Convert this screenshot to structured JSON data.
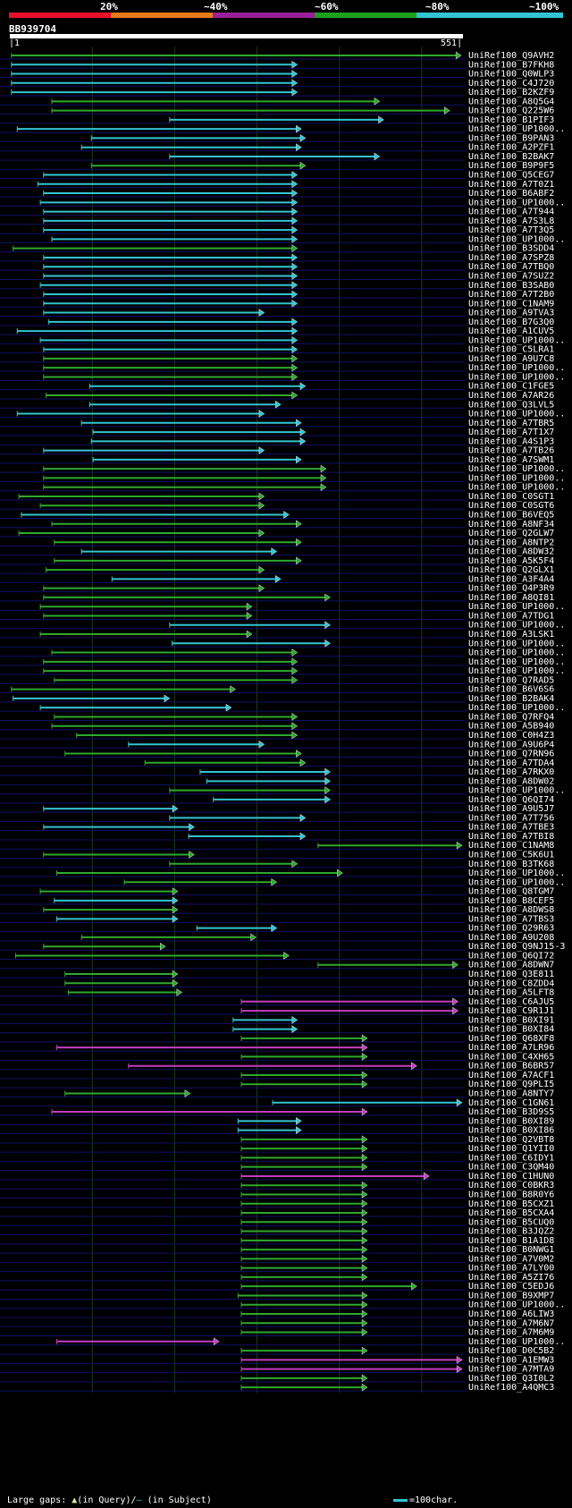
{
  "scale": {
    "labels": [
      "20%",
      "~40%",
      "~60%",
      "~80%",
      "~100%"
    ],
    "colors": [
      "#e8102a",
      "#e87a1a",
      "#9a1f9a",
      "#1ea01e",
      "#33c4d2"
    ]
  },
  "query": {
    "id": "BB939704",
    "start": "1",
    "end": "551",
    "length": 551
  },
  "palette": {
    "cyan": "#33c4d2",
    "green": "#2fa82f",
    "magenta": "#c23cc2",
    "row_line": "#10106a",
    "grid": "#1a3a1a"
  },
  "hits": [
    {
      "label": "UniRef100_Q9AVH2",
      "c": "green",
      "s": 3,
      "e": 549
    },
    {
      "label": "UniRef100_B7FKH8",
      "c": "cyan",
      "s": 3,
      "e": 350
    },
    {
      "label": "UniRef100_Q0WLP3",
      "c": "cyan",
      "s": 3,
      "e": 350
    },
    {
      "label": "UniRef100_C4J720",
      "c": "cyan",
      "s": 3,
      "e": 350
    },
    {
      "label": "UniRef100_B2KZF9",
      "c": "cyan",
      "s": 3,
      "e": 350
    },
    {
      "label": "UniRef100_A8Q5G4",
      "c": "green",
      "s": 52,
      "e": 450
    },
    {
      "label": "UniRef100_Q225W6",
      "c": "green",
      "s": 52,
      "e": 535
    },
    {
      "label": "UniRef100_B1PIF3",
      "c": "cyan",
      "s": 195,
      "e": 455
    },
    {
      "label": "UniRef100_UP1000..",
      "c": "cyan",
      "s": 10,
      "e": 355
    },
    {
      "label": "UniRef100_B9PAN3",
      "c": "cyan",
      "s": 100,
      "e": 360
    },
    {
      "label": "UniRef100_A2PZF1",
      "c": "cyan",
      "s": 88,
      "e": 355
    },
    {
      "label": "UniRef100_B2BAK7",
      "c": "cyan",
      "s": 195,
      "e": 450
    },
    {
      "label": "UniRef100_B9P9F5",
      "c": "green",
      "s": 100,
      "e": 360
    },
    {
      "label": "UniRef100_Q5CEG7",
      "c": "cyan",
      "s": 42,
      "e": 350
    },
    {
      "label": "UniRef100_A7T0Z1",
      "c": "cyan",
      "s": 35,
      "e": 350
    },
    {
      "label": "UniRef100_B6ABF2",
      "c": "cyan",
      "s": 42,
      "e": 350
    },
    {
      "label": "UniRef100_UP1000..",
      "c": "cyan",
      "s": 38,
      "e": 350
    },
    {
      "label": "UniRef100_A7T944",
      "c": "cyan",
      "s": 42,
      "e": 350
    },
    {
      "label": "UniRef100_A7S3L8",
      "c": "cyan",
      "s": 42,
      "e": 350
    },
    {
      "label": "UniRef100_A7T3Q5",
      "c": "cyan",
      "s": 42,
      "e": 350
    },
    {
      "label": "UniRef100_UP1000..",
      "c": "cyan",
      "s": 52,
      "e": 350
    },
    {
      "label": "UniRef100_B3SDD4",
      "c": "green",
      "s": 5,
      "e": 350
    },
    {
      "label": "UniRef100_A7SPZ8",
      "c": "cyan",
      "s": 42,
      "e": 350
    },
    {
      "label": "UniRef100_A7TBQ0",
      "c": "cyan",
      "s": 42,
      "e": 350
    },
    {
      "label": "UniRef100_A7SUZ2",
      "c": "cyan",
      "s": 42,
      "e": 350
    },
    {
      "label": "UniRef100_B3SAB0",
      "c": "cyan",
      "s": 38,
      "e": 350
    },
    {
      "label": "UniRef100_A7T2B0",
      "c": "cyan",
      "s": 42,
      "e": 350
    },
    {
      "label": "UniRef100_C1NAM9",
      "c": "cyan",
      "s": 42,
      "e": 350
    },
    {
      "label": "UniRef100_A9TVA3",
      "c": "cyan",
      "s": 42,
      "e": 310
    },
    {
      "label": "UniRef100_B7G3Q0",
      "c": "cyan",
      "s": 48,
      "e": 350
    },
    {
      "label": "UniRef100_A1CUV5",
      "c": "cyan",
      "s": 10,
      "e": 350
    },
    {
      "label": "UniRef100_UP1000..",
      "c": "cyan",
      "s": 38,
      "e": 350
    },
    {
      "label": "UniRef100_C5LRA1",
      "c": "cyan",
      "s": 42,
      "e": 350
    },
    {
      "label": "UniRef100_A9U7C8",
      "c": "green",
      "s": 42,
      "e": 350
    },
    {
      "label": "UniRef100_UP1000..",
      "c": "green",
      "s": 42,
      "e": 350
    },
    {
      "label": "UniRef100_UP1000..",
      "c": "green",
      "s": 42,
      "e": 350
    },
    {
      "label": "UniRef100_C1FGE5",
      "c": "cyan",
      "s": 98,
      "e": 360
    },
    {
      "label": "UniRef100_A7AR26",
      "c": "green",
      "s": 45,
      "e": 350
    },
    {
      "label": "UniRef100_Q3LVL5",
      "c": "cyan",
      "s": 98,
      "e": 330
    },
    {
      "label": "UniRef100_UP1000..",
      "c": "cyan",
      "s": 10,
      "e": 310
    },
    {
      "label": "UniRef100_A7TBR5",
      "c": "cyan",
      "s": 88,
      "e": 355
    },
    {
      "label": "UniRef100_A7T1X7",
      "c": "cyan",
      "s": 102,
      "e": 360
    },
    {
      "label": "UniRef100_A4S1P3",
      "c": "cyan",
      "s": 100,
      "e": 360
    },
    {
      "label": "UniRef100_A7TB26",
      "c": "cyan",
      "s": 42,
      "e": 310
    },
    {
      "label": "UniRef100_A7SWM1",
      "c": "cyan",
      "s": 102,
      "e": 355
    },
    {
      "label": "UniRef100_UP1000..",
      "c": "green",
      "s": 42,
      "e": 385
    },
    {
      "label": "UniRef100_UP1000..",
      "c": "green",
      "s": 42,
      "e": 385
    },
    {
      "label": "UniRef100_UP1000..",
      "c": "green",
      "s": 42,
      "e": 385
    },
    {
      "label": "UniRef100_C0SGT1",
      "c": "green",
      "s": 12,
      "e": 310
    },
    {
      "label": "UniRef100_C0SGT6",
      "c": "green",
      "s": 38,
      "e": 310
    },
    {
      "label": "UniRef100_B6VEQ5",
      "c": "cyan",
      "s": 15,
      "e": 340
    },
    {
      "label": "UniRef100_A8NF34",
      "c": "green",
      "s": 52,
      "e": 355
    },
    {
      "label": "UniRef100_Q2GLW7",
      "c": "green",
      "s": 12,
      "e": 310
    },
    {
      "label": "UniRef100_A8NTP2",
      "c": "green",
      "s": 55,
      "e": 355
    },
    {
      "label": "UniRef100_A8DW32",
      "c": "cyan",
      "s": 88,
      "e": 325
    },
    {
      "label": "UniRef100_A5K5F4",
      "c": "green",
      "s": 55,
      "e": 355
    },
    {
      "label": "UniRef100_Q2GLX1",
      "c": "green",
      "s": 45,
      "e": 310
    },
    {
      "label": "UniRef100_A3F4A4",
      "c": "cyan",
      "s": 125,
      "e": 330
    },
    {
      "label": "UniRef100_Q4P3R9",
      "c": "green",
      "s": 42,
      "e": 310
    },
    {
      "label": "UniRef100_A8QI81",
      "c": "green",
      "s": 42,
      "e": 390
    },
    {
      "label": "UniRef100_UP1000..",
      "c": "green",
      "s": 38,
      "e": 295
    },
    {
      "label": "UniRef100_A7TDG1",
      "c": "green",
      "s": 42,
      "e": 295
    },
    {
      "label": "UniRef100_UP1000..",
      "c": "cyan",
      "s": 195,
      "e": 390
    },
    {
      "label": "UniRef100_A3LSK1",
      "c": "green",
      "s": 38,
      "e": 295
    },
    {
      "label": "UniRef100_UP1000..",
      "c": "cyan",
      "s": 198,
      "e": 390
    },
    {
      "label": "UniRef100_UP1000..",
      "c": "green",
      "s": 52,
      "e": 350
    },
    {
      "label": "UniRef100_UP1000..",
      "c": "green",
      "s": 42,
      "e": 350
    },
    {
      "label": "UniRef100_UP1000..",
      "c": "green",
      "s": 42,
      "e": 350
    },
    {
      "label": "UniRef100_Q7RAD5",
      "c": "green",
      "s": 55,
      "e": 350
    },
    {
      "label": "UniRef100_B6V6S6",
      "c": "green",
      "s": 3,
      "e": 275
    },
    {
      "label": "UniRef100_B2BAK4",
      "c": "cyan",
      "s": 5,
      "e": 195
    },
    {
      "label": "UniRef100_UP1000..",
      "c": "cyan",
      "s": 38,
      "e": 270
    },
    {
      "label": "UniRef100_Q7RFQ4",
      "c": "green",
      "s": 55,
      "e": 350
    },
    {
      "label": "UniRef100_A5B940",
      "c": "green",
      "s": 52,
      "e": 350
    },
    {
      "label": "UniRef100_C0H4Z3",
      "c": "green",
      "s": 82,
      "e": 350
    },
    {
      "label": "UniRef100_A9U6P4",
      "c": "cyan",
      "s": 145,
      "e": 310
    },
    {
      "label": "UniRef100_Q7RN96",
      "c": "green",
      "s": 68,
      "e": 355
    },
    {
      "label": "UniRef100_A7TDA4",
      "c": "green",
      "s": 165,
      "e": 360
    },
    {
      "label": "UniRef100_A7RKX0",
      "c": "cyan",
      "s": 232,
      "e": 390
    },
    {
      "label": "UniRef100_A8DW02",
      "c": "cyan",
      "s": 240,
      "e": 390
    },
    {
      "label": "UniRef100_UP1000..",
      "c": "green",
      "s": 195,
      "e": 390
    },
    {
      "label": "UniRef100_Q6QI74",
      "c": "cyan",
      "s": 248,
      "e": 390
    },
    {
      "label": "UniRef100_A9U5J7",
      "c": "cyan",
      "s": 42,
      "e": 205
    },
    {
      "label": "UniRef100_A7T756",
      "c": "cyan",
      "s": 195,
      "e": 360
    },
    {
      "label": "UniRef100_A7TBE3",
      "c": "cyan",
      "s": 42,
      "e": 225
    },
    {
      "label": "UniRef100_A7TBI8",
      "c": "cyan",
      "s": 218,
      "e": 360
    },
    {
      "label": "UniRef100_C1NAM8",
      "c": "green",
      "s": 375,
      "e": 550
    },
    {
      "label": "UniRef100_C5K6U1",
      "c": "green",
      "s": 42,
      "e": 225
    },
    {
      "label": "UniRef100_B3TK68",
      "c": "green",
      "s": 195,
      "e": 350
    },
    {
      "label": "UniRef100_UP1000..",
      "c": "green",
      "s": 58,
      "e": 405
    },
    {
      "label": "UniRef100_UP1000..",
      "c": "green",
      "s": 140,
      "e": 325
    },
    {
      "label": "UniRef100_Q8TGM7",
      "c": "green",
      "s": 38,
      "e": 205
    },
    {
      "label": "UniRef100_B8CEF5",
      "c": "cyan",
      "s": 55,
      "e": 205
    },
    {
      "label": "UniRef100_A8DWS8",
      "c": "green",
      "s": 42,
      "e": 205
    },
    {
      "label": "UniRef100_A7TBS3",
      "c": "cyan",
      "s": 58,
      "e": 205
    },
    {
      "label": "UniRef100_Q29R63",
      "c": "cyan",
      "s": 228,
      "e": 325
    },
    {
      "label": "UniRef100_A9U208",
      "c": "green",
      "s": 88,
      "e": 300
    },
    {
      "label": "UniRef100_Q9NJ15-3",
      "c": "green",
      "s": 42,
      "e": 190
    },
    {
      "label": "UniRef100_Q6QI72",
      "c": "green",
      "s": 8,
      "e": 340
    },
    {
      "label": "UniRef100_A8DWN7",
      "c": "green",
      "s": 375,
      "e": 545
    },
    {
      "label": "UniRef100_Q3E811",
      "c": "green",
      "s": 68,
      "e": 205
    },
    {
      "label": "UniRef100_C8ZDD4",
      "c": "green",
      "s": 68,
      "e": 205
    },
    {
      "label": "UniRef100_A5LFT8",
      "c": "green",
      "s": 72,
      "e": 210
    },
    {
      "label": "UniRef100_C6AJU5",
      "c": "magenta",
      "s": 282,
      "e": 545
    },
    {
      "label": "UniRef100_C9R1J1",
      "c": "magenta",
      "s": 282,
      "e": 545
    },
    {
      "label": "UniRef100_B0XI91",
      "c": "cyan",
      "s": 272,
      "e": 350
    },
    {
      "label": "UniRef100_B0XI84",
      "c": "cyan",
      "s": 272,
      "e": 350
    },
    {
      "label": "UniRef100_Q68XF8",
      "c": "green",
      "s": 282,
      "e": 435
    },
    {
      "label": "UniRef100_A7LR96",
      "c": "magenta",
      "s": 58,
      "e": 435
    },
    {
      "label": "UniRef100_C4XH65",
      "c": "green",
      "s": 282,
      "e": 435
    },
    {
      "label": "UniRef100_B6BR57",
      "c": "magenta",
      "s": 145,
      "e": 495
    },
    {
      "label": "UniRef100_A7ACF1",
      "c": "green",
      "s": 282,
      "e": 435
    },
    {
      "label": "UniRef100_Q9PLI5",
      "c": "green",
      "s": 282,
      "e": 435
    },
    {
      "label": "UniRef100_A8NTY7",
      "c": "green",
      "s": 68,
      "e": 220
    },
    {
      "label": "UniRef100_C1GN61",
      "c": "cyan",
      "s": 320,
      "e": 550
    },
    {
      "label": "UniRef100_B3D9S5",
      "c": "magenta",
      "s": 52,
      "e": 435
    },
    {
      "label": "UniRef100_B0XI89",
      "c": "cyan",
      "s": 278,
      "e": 355
    },
    {
      "label": "UniRef100_B0XI86",
      "c": "cyan",
      "s": 278,
      "e": 355
    },
    {
      "label": "UniRef100_Q2VBT8",
      "c": "green",
      "s": 282,
      "e": 435
    },
    {
      "label": "UniRef100_Q1YII0",
      "c": "green",
      "s": 282,
      "e": 435
    },
    {
      "label": "UniRef100_C6IDY1",
      "c": "green",
      "s": 282,
      "e": 435
    },
    {
      "label": "UniRef100_C3QM40",
      "c": "green",
      "s": 282,
      "e": 435
    },
    {
      "label": "UniRef100_C1HUN0",
      "c": "magenta",
      "s": 282,
      "e": 510
    },
    {
      "label": "UniRef100_C0BKR3",
      "c": "green",
      "s": 282,
      "e": 435
    },
    {
      "label": "UniRef100_B8R0Y6",
      "c": "green",
      "s": 282,
      "e": 435
    },
    {
      "label": "UniRef100_B5CXZ1",
      "c": "green",
      "s": 282,
      "e": 435
    },
    {
      "label": "UniRef100_B5CXA4",
      "c": "green",
      "s": 282,
      "e": 435
    },
    {
      "label": "UniRef100_B5CUQ0",
      "c": "green",
      "s": 282,
      "e": 435
    },
    {
      "label": "UniRef100_B3JQZ2",
      "c": "green",
      "s": 282,
      "e": 435
    },
    {
      "label": "UniRef100_B1A1D8",
      "c": "green",
      "s": 282,
      "e": 435
    },
    {
      "label": "UniRef100_B0NWG1",
      "c": "green",
      "s": 282,
      "e": 435
    },
    {
      "label": "UniRef100_A7V0M2",
      "c": "green",
      "s": 282,
      "e": 435
    },
    {
      "label": "UniRef100_A7LY00",
      "c": "green",
      "s": 282,
      "e": 435
    },
    {
      "label": "UniRef100_A5ZI76",
      "c": "green",
      "s": 282,
      "e": 435
    },
    {
      "label": "UniRef100_C5EDJ6",
      "c": "green",
      "s": 282,
      "e": 495
    },
    {
      "label": "UniRef100_B9XMP7",
      "c": "green",
      "s": 278,
      "e": 435
    },
    {
      "label": "UniRef100_UP1000..",
      "c": "green",
      "s": 282,
      "e": 435
    },
    {
      "label": "UniRef100_A6LIW3",
      "c": "green",
      "s": 282,
      "e": 435
    },
    {
      "label": "UniRef100_A7M6N7",
      "c": "green",
      "s": 282,
      "e": 435
    },
    {
      "label": "UniRef100_A7M6M9",
      "c": "green",
      "s": 282,
      "e": 435
    },
    {
      "label": "UniRef100_UP1000..",
      "c": "magenta",
      "s": 58,
      "e": 255
    },
    {
      "label": "UniRef100_D0C5B2",
      "c": "green",
      "s": 282,
      "e": 435
    },
    {
      "label": "UniRef100_A1EMW3",
      "c": "magenta",
      "s": 282,
      "e": 550
    },
    {
      "label": "UniRef100_A7MTA9",
      "c": "magenta",
      "s": 282,
      "e": 550
    },
    {
      "label": "UniRef100_Q3I0L2",
      "c": "green",
      "s": 282,
      "e": 435
    },
    {
      "label": "UniRef100_A4QMC3",
      "c": "green",
      "s": 282,
      "e": 435
    }
  ],
  "footer": {
    "large_gaps": "Large gaps:",
    "in_query": "(in Query)/",
    "in_subject": "(in Subject)",
    "scale_note": "=100char."
  }
}
